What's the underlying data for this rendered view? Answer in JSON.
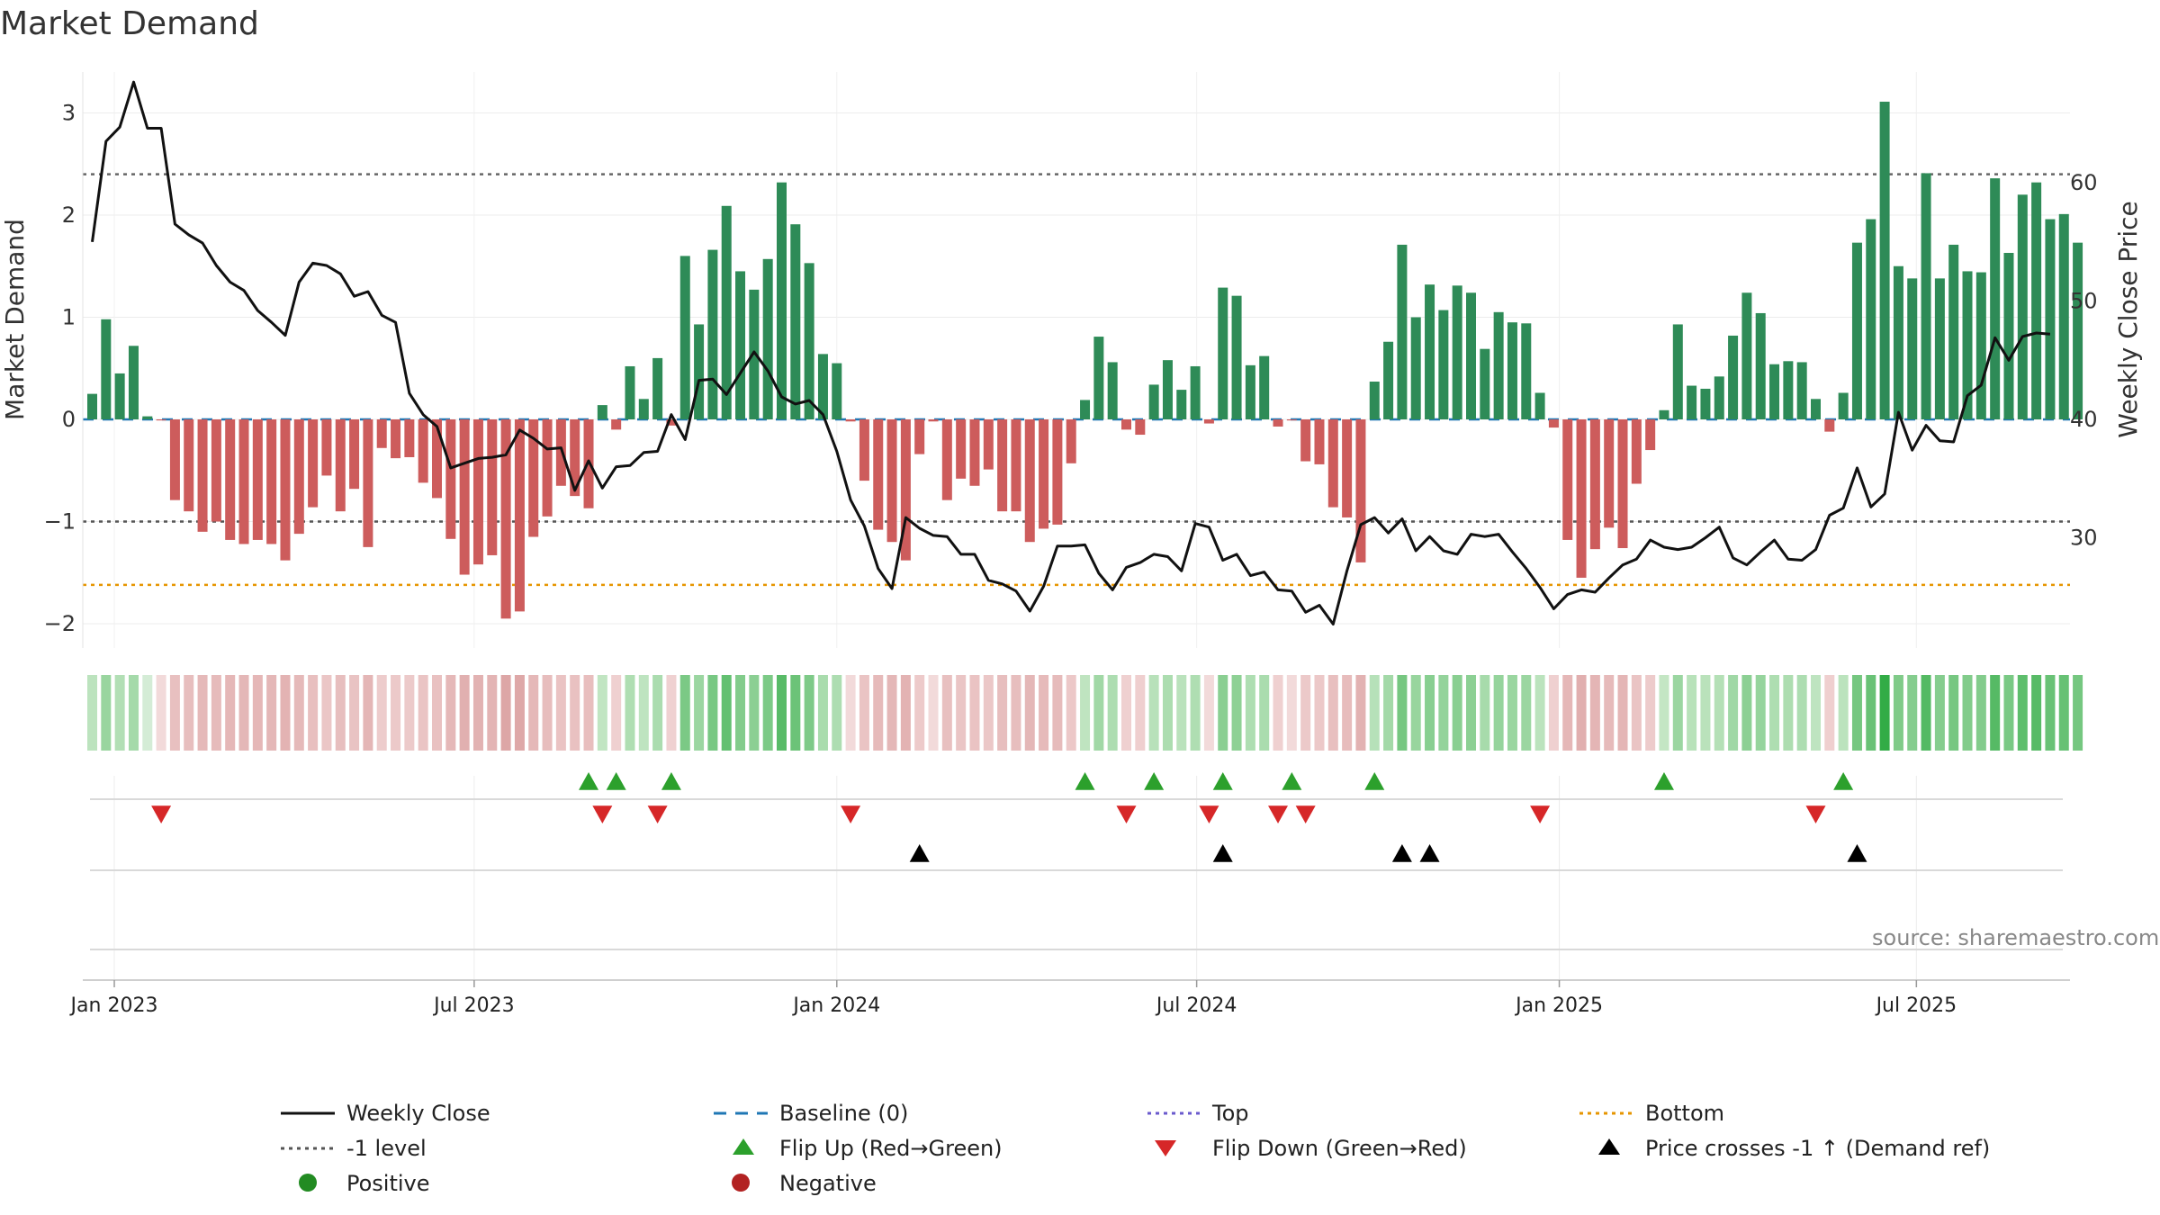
{
  "chart_data": {
    "type": "bar",
    "title": "Market Demand",
    "ylabel_left": "Market Demand",
    "ylabel_right": "Weekly Close Price",
    "source": "source: sharemaestro.com",
    "ylim_left": [
      -2.2,
      3.3
    ],
    "ylim_right": [
      22,
      70
    ],
    "yticks_left": [
      -2,
      -1,
      0,
      1,
      2,
      3
    ],
    "yticks_left_labels": [
      "−2",
      "−1",
      "0",
      "1",
      "2",
      "3"
    ],
    "yticks_right": [
      30,
      40,
      50,
      60
    ],
    "yticks_right_labels": [
      "30",
      "40",
      "50",
      "60"
    ],
    "reference_lines": {
      "baseline": 0,
      "top": 2.4,
      "minus_one": -1,
      "bottom": -1.62
    },
    "x_start": "2022-12-26",
    "x_end": "2025-10-13",
    "weeks_count": 146,
    "date_ticks": [
      {
        "label": "Jan 2023",
        "week": 1.6
      },
      {
        "label": "Jul 2023",
        "week": 27.7
      },
      {
        "label": "Jan 2024",
        "week": 54.0
      },
      {
        "label": "Jul 2024",
        "week": 80.1
      },
      {
        "label": "Jan 2025",
        "week": 106.4
      },
      {
        "label": "Jul 2025",
        "week": 132.3
      }
    ],
    "demand": [
      0.25,
      0.98,
      0.45,
      0.72,
      0.03,
      -0.01,
      -0.79,
      -0.9,
      -1.1,
      -1.0,
      -1.18,
      -1.22,
      -1.18,
      -1.22,
      -1.38,
      -1.12,
      -0.86,
      -0.55,
      -0.9,
      -0.68,
      -1.25,
      -0.28,
      -0.38,
      -0.37,
      -0.62,
      -0.77,
      -1.17,
      -1.52,
      -1.42,
      -1.33,
      -1.95,
      -1.88,
      -1.15,
      -0.95,
      -0.65,
      -0.75,
      -0.87,
      0.14,
      -0.1,
      0.52,
      0.2,
      0.6,
      -0.06,
      1.6,
      0.93,
      1.66,
      2.09,
      1.45,
      1.27,
      1.57,
      2.32,
      1.91,
      1.53,
      0.64,
      0.55,
      -0.02,
      -0.6,
      -1.08,
      -1.2,
      -1.38,
      -0.34,
      -0.02,
      -0.79,
      -0.58,
      -0.65,
      -0.49,
      -0.9,
      -0.9,
      -1.2,
      -1.07,
      -1.03,
      -0.43,
      0.19,
      0.81,
      0.56,
      -0.1,
      -0.15,
      0.34,
      0.58,
      0.29,
      0.52,
      -0.04,
      1.29,
      1.21,
      0.53,
      0.62,
      -0.07,
      -0.01,
      -0.41,
      -0.44,
      -0.86,
      -0.96,
      -1.4,
      0.37,
      0.76,
      1.71,
      1.0,
      1.32,
      1.07,
      1.31,
      1.24,
      0.69,
      1.05,
      0.95,
      0.94,
      0.26,
      -0.08,
      -1.18,
      -1.55,
      -1.27,
      -1.06,
      -1.26,
      -0.63,
      -0.3,
      0.09,
      0.93,
      0.33,
      0.3,
      0.42,
      0.82,
      1.24,
      1.04,
      0.54,
      0.57,
      0.56,
      0.2,
      -0.12,
      0.26,
      1.73,
      1.96,
      3.11,
      1.5,
      1.38,
      2.41,
      1.38,
      1.71,
      1.45,
      1.44,
      2.36,
      1.63,
      2.2,
      2.32,
      1.96,
      2.01,
      1.73
    ],
    "weekly_close": [
      55.0,
      63.5,
      64.7,
      68.5,
      64.6,
      64.6,
      56.5,
      55.6,
      54.9,
      53.0,
      51.6,
      50.9,
      49.2,
      48.2,
      47.1,
      51.6,
      53.2,
      53.0,
      52.3,
      50.4,
      50.8,
      48.8,
      48.2,
      42.2,
      40.4,
      39.4,
      35.9,
      36.3,
      36.7,
      36.8,
      37.0,
      39.1,
      38.4,
      37.5,
      37.6,
      34.0,
      36.5,
      34.2,
      36.0,
      36.1,
      37.2,
      37.3,
      40.4,
      38.3,
      43.3,
      43.4,
      42.1,
      43.9,
      45.7,
      44.1,
      41.9,
      41.3,
      41.6,
      40.4,
      37.3,
      33.2,
      31.0,
      27.4,
      25.7,
      31.7,
      30.8,
      30.2,
      30.1,
      28.6,
      28.6,
      26.4,
      26.1,
      25.5,
      23.8,
      25.9,
      29.3,
      29.3,
      29.4,
      27.0,
      25.6,
      27.5,
      27.9,
      28.6,
      28.4,
      27.2,
      31.2,
      30.9,
      28.1,
      28.6,
      26.8,
      27.1,
      25.6,
      25.5,
      23.7,
      24.3,
      22.7,
      27.2,
      31.1,
      31.7,
      30.4,
      31.6,
      28.9,
      30.1,
      28.9,
      28.6,
      30.3,
      30.1,
      30.3,
      28.8,
      27.4,
      25.8,
      24.0,
      25.2,
      25.6,
      25.4,
      26.6,
      27.7,
      28.2,
      29.8,
      29.2,
      29.0,
      29.2,
      30.0,
      30.9,
      28.3,
      27.7,
      28.8,
      29.8,
      28.2,
      28.1,
      29.0,
      31.9,
      32.5,
      35.9,
      32.6,
      33.7,
      40.6,
      37.4,
      39.5,
      38.2,
      38.1,
      42.0,
      42.9,
      46.9,
      45.0,
      47.0,
      47.3,
      47.2
    ],
    "flip_up_weeks": [
      36,
      38,
      42,
      72,
      77,
      82,
      87,
      93,
      114,
      127
    ],
    "flip_down_weeks": [
      5,
      37,
      41,
      55,
      75,
      81,
      86,
      88,
      105,
      125
    ],
    "price_cross_weeks": [
      60,
      82,
      95,
      97,
      128
    ],
    "legend": {
      "weekly_close": "Weekly Close",
      "baseline": "Baseline (0)",
      "top": "Top",
      "bottom": "Bottom",
      "minus_one": "-1 level",
      "flip_up": "Flip Up (Red→Green)",
      "flip_down": "Flip Down (Green→Red)",
      "price_cross": "Price crosses -1 ↑ (Demand ref)",
      "positive": "Positive",
      "negative": "Negative"
    },
    "colors": {
      "positive": "#2e8b57",
      "negative": "#cd5c5c",
      "close": "#111111",
      "baseline": "#1f77b4",
      "top": "#6a5acd",
      "bottom": "#e69500",
      "minus_one": "#555555",
      "flip_up": "#2ca02c",
      "flip_down": "#d62728",
      "cross": "#000000",
      "legend_positive": "#228b22",
      "legend_negative": "#b22222"
    }
  }
}
